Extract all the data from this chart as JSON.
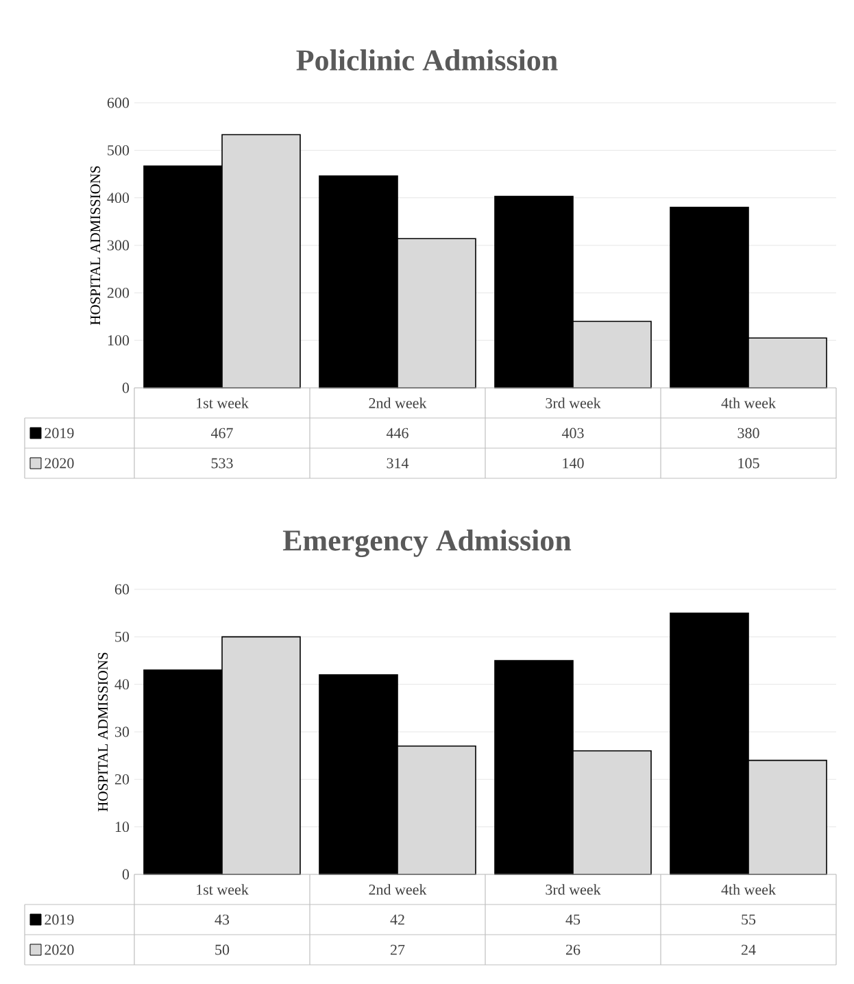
{
  "chart_data": [
    {
      "type": "bar",
      "title": "Policlinic Admission",
      "ylabel": "HOSPITAL ADMISSIONS",
      "categories": [
        "1st week",
        "2nd week",
        "3rd week",
        "4th week"
      ],
      "series": [
        {
          "name": "2019",
          "color": "#000000",
          "values": [
            467,
            446,
            403,
            380
          ]
        },
        {
          "name": "2020",
          "color": "#d9d9d9",
          "values": [
            533,
            314,
            140,
            105
          ]
        }
      ],
      "ylim": [
        0,
        600
      ],
      "yticks": [
        0,
        100,
        200,
        300,
        400,
        500,
        600
      ],
      "grid": "y",
      "data_labels": true,
      "legend": "bottom left"
    },
    {
      "type": "bar",
      "title": "Emergency Admission",
      "ylabel": "HOSPITAL ADMISSIONS",
      "categories": [
        "1st week",
        "2nd week",
        "3rd week",
        "4th week"
      ],
      "series": [
        {
          "name": "2019",
          "color": "#000000",
          "values": [
            43,
            42,
            45,
            55
          ]
        },
        {
          "name": "2020",
          "color": "#d9d9d9",
          "values": [
            50,
            27,
            26,
            24
          ]
        }
      ],
      "ylim": [
        0,
        60
      ],
      "yticks": [
        0,
        10,
        20,
        30,
        40,
        50,
        60
      ],
      "grid": "y",
      "data_labels": true,
      "legend": "bottom left"
    }
  ]
}
